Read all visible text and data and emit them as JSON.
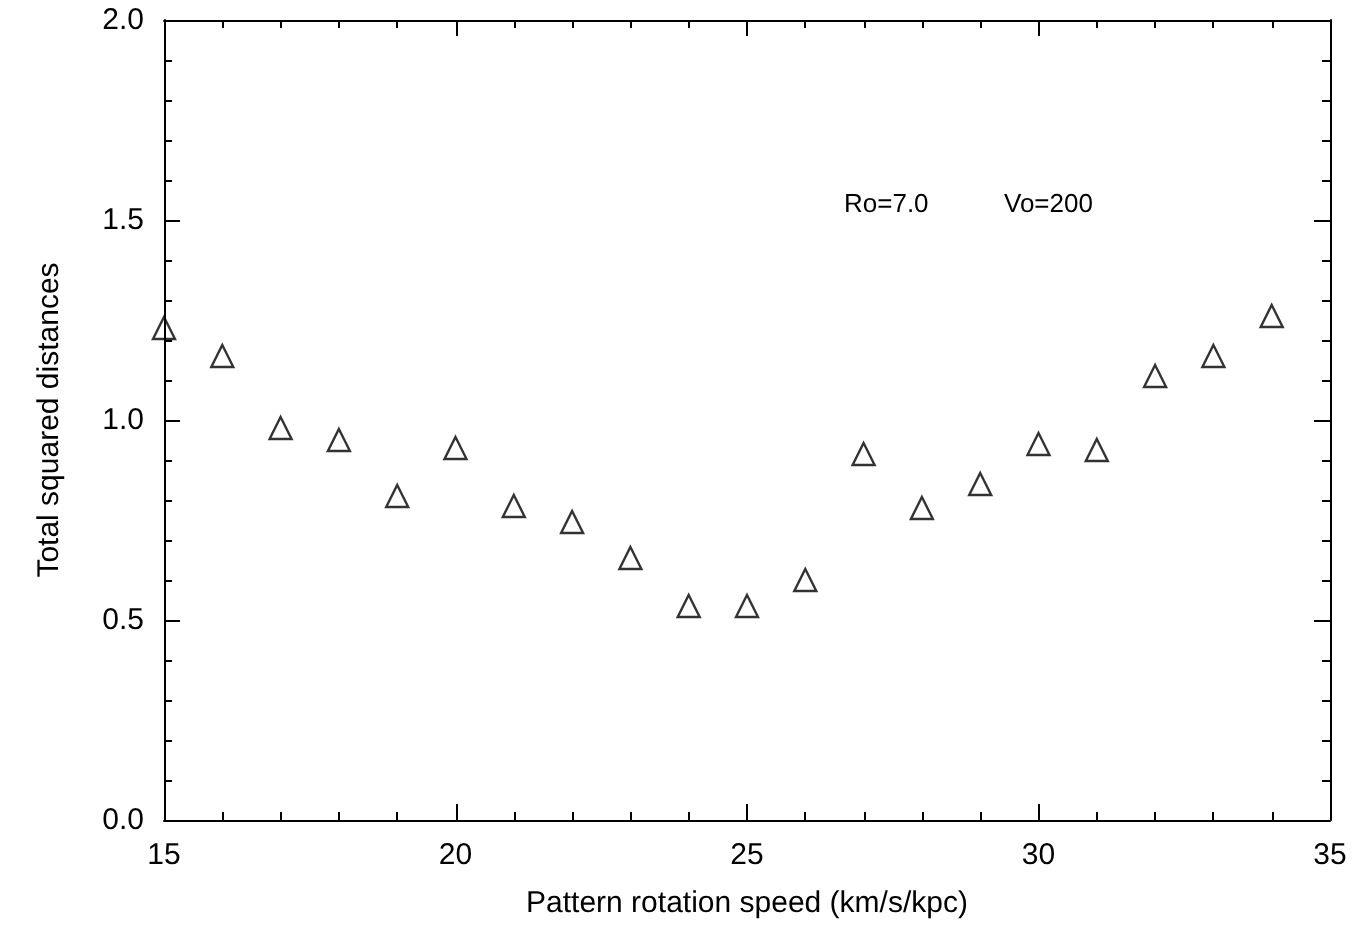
{
  "chart_data": {
    "type": "scatter",
    "xlabel": "Pattern rotation speed (km/s/kpc)",
    "ylabel": "Total squared distances",
    "x": [
      15,
      16,
      17,
      18,
      19,
      20,
      21,
      22,
      23,
      24,
      25,
      26,
      27,
      28,
      29,
      30,
      31,
      32,
      33,
      34
    ],
    "values": [
      1.23,
      1.16,
      0.98,
      0.95,
      0.81,
      0.93,
      0.785,
      0.745,
      0.655,
      0.535,
      0.535,
      0.6,
      0.915,
      0.78,
      0.84,
      0.94,
      0.925,
      1.11,
      1.16,
      1.26
    ],
    "color": "#000000",
    "marker": "triangle",
    "grid": false,
    "xlim": [
      15,
      35
    ],
    "xticks": [
      15,
      20,
      25,
      30,
      35
    ],
    "ylim": [
      0,
      2
    ],
    "yticks": [
      {
        "value": 0,
        "label": "0.0"
      },
      0.5,
      {
        "value": 1,
        "label": "1.0"
      },
      1.5,
      {
        "value": 2,
        "label": "2.0"
      }
    ],
    "annotations": [
      "Ro=7.0",
      "Vo=200"
    ]
  }
}
